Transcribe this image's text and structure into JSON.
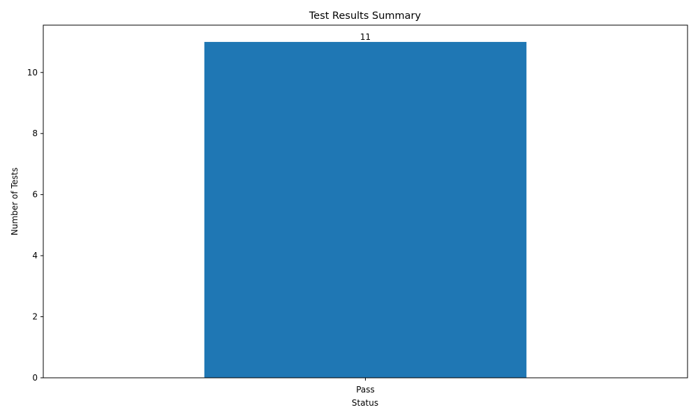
{
  "chart_data": {
    "type": "bar",
    "title": "Test Results Summary",
    "xlabel": "Status",
    "ylabel": "Number of Tests",
    "categories": [
      "Pass"
    ],
    "values": [
      11
    ],
    "data_labels": [
      "11"
    ],
    "ylim": [
      0,
      11.55
    ],
    "yticks": [
      0,
      2,
      4,
      6,
      8,
      10
    ],
    "ytick_labels": [
      "0",
      "2",
      "4",
      "6",
      "8",
      "10"
    ],
    "grid": false,
    "legend": "none",
    "bar_color": "#1f77b4"
  }
}
